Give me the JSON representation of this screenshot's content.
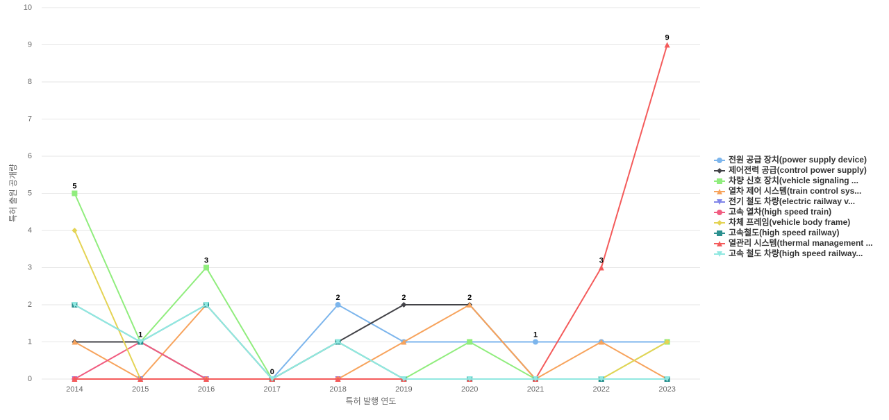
{
  "chart_data": {
    "type": "line",
    "x_label": "특허 발행 연도",
    "y_label": "특허 출원 공개량",
    "categories": [
      "2014",
      "2015",
      "2016",
      "2017",
      "2018",
      "2019",
      "2020",
      "2021",
      "2022",
      "2023"
    ],
    "ylim": [
      0,
      10
    ],
    "yticks": [
      0,
      1,
      2,
      3,
      4,
      5,
      6,
      7,
      8,
      9,
      10
    ],
    "grid": true,
    "legend": "right",
    "series": [
      {
        "name": "전원 공급 장치(power supply device)",
        "color": "#7cb5ec",
        "marker": "circle",
        "values": [
          0,
          0,
          0,
          0,
          2,
          1,
          1,
          1,
          1,
          1
        ]
      },
      {
        "name": "제어전력 공급(control power supply)",
        "color": "#434348",
        "marker": "diamond",
        "values": [
          1,
          1,
          0,
          0,
          1,
          2,
          2,
          0,
          0,
          0
        ]
      },
      {
        "name": "차량 신호 장치(vehicle signaling ...",
        "color": "#90ed7d",
        "marker": "square",
        "values": [
          5,
          1,
          3,
          0,
          1,
          0,
          1,
          0,
          0,
          1
        ]
      },
      {
        "name": "열차 제어 시스템(train control sys...",
        "color": "#f7a35c",
        "marker": "triangle",
        "values": [
          1,
          0,
          2,
          0,
          0,
          1,
          2,
          0,
          1,
          0
        ]
      },
      {
        "name": "전기 철도 차량(electric railway v...",
        "color": "#8085e9",
        "marker": "triangle-down",
        "values": [
          0,
          0,
          0,
          0,
          0,
          0,
          0,
          0,
          0,
          0
        ]
      },
      {
        "name": "고속 열차(high speed train)",
        "color": "#f15c80",
        "marker": "circle",
        "values": [
          0,
          1,
          0,
          0,
          0,
          0,
          0,
          0,
          0,
          0
        ]
      },
      {
        "name": "차체 프레임(vehicle body frame)",
        "color": "#e4d354",
        "marker": "diamond",
        "values": [
          4,
          0,
          0,
          0,
          0,
          0,
          0,
          0,
          0,
          1
        ]
      },
      {
        "name": "고속철도(high speed railway)",
        "color": "#2b908f",
        "marker": "square",
        "values": [
          2,
          1,
          2,
          0,
          1,
          0,
          0,
          0,
          0,
          0
        ]
      },
      {
        "name": "열관리 시스템(thermal management ...",
        "color": "#f45b5b",
        "marker": "triangle",
        "values": [
          0,
          0,
          0,
          0,
          0,
          0,
          0,
          0,
          3,
          9
        ]
      },
      {
        "name": "고속 철도 차량(high speed railway...",
        "color": "#91e8e1",
        "marker": "triangle-down",
        "values": [
          2,
          1,
          2,
          0,
          1,
          0,
          0,
          0,
          0,
          0
        ]
      }
    ]
  }
}
